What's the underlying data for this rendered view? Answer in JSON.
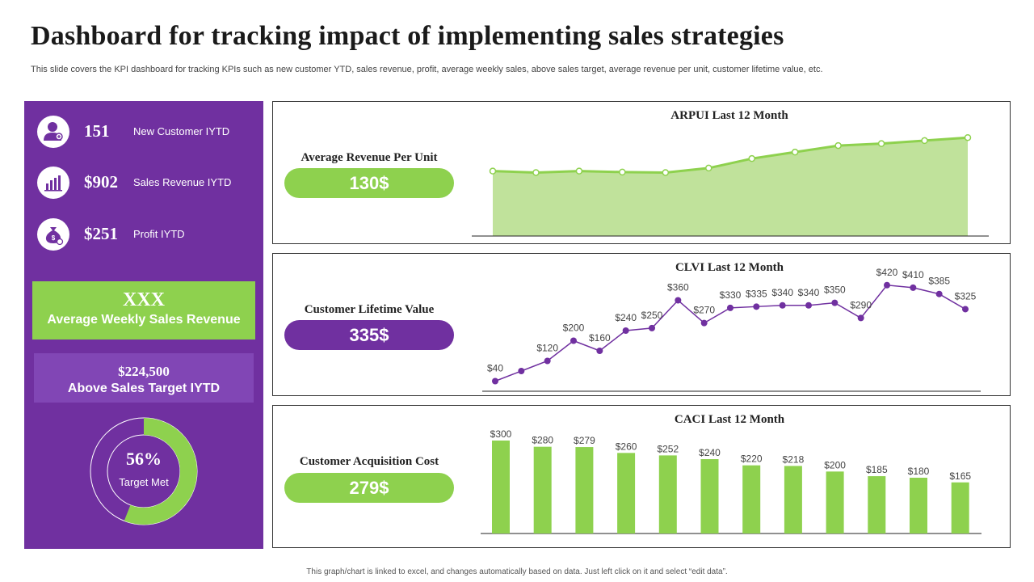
{
  "header": {
    "title": "Dashboard for tracking impact of implementing sales strategies",
    "subtitle": "This slide covers the KPI dashboard for tracking KPIs such as new customer YTD, sales revenue, profit, average weekly sales, above sales target, average revenue per unit, customer lifetime value, etc."
  },
  "left_panel": {
    "kpis": [
      {
        "icon": "user-plus-icon",
        "value": "151",
        "label": "New Customer IYTD"
      },
      {
        "icon": "bar-chart-icon",
        "value": "$902",
        "label": "Sales Revenue  IYTD"
      },
      {
        "icon": "money-bag-icon",
        "value": "$251",
        "label": "Profit IYTD"
      }
    ],
    "weekly": {
      "value": "XXX",
      "label": "Average Weekly Sales Revenue"
    },
    "target": {
      "value": "$224,500",
      "label": "Above Sales Target IYTD"
    },
    "target_met": {
      "value": "56%",
      "label": "Target Met",
      "fraction": 0.56
    }
  },
  "panels": {
    "arpu": {
      "label": "Average Revenue Per Unit",
      "value": "130$"
    },
    "clv": {
      "label": "Customer Lifetime Value",
      "value": "335$"
    },
    "cac": {
      "label": "Customer Acquisition Cost",
      "value": "279$"
    }
  },
  "colors": {
    "purple": "#7030a0",
    "green": "#8ed14e",
    "light_green": "#c0e29b",
    "donut_track": "#7030a0"
  },
  "chart_data": [
    {
      "type": "area",
      "title": "ARPUI Last 12 Month",
      "values": [
        130,
        127,
        130,
        128,
        127,
        136,
        155,
        168,
        181,
        185,
        191,
        197
      ],
      "ylim": [
        0,
        220
      ],
      "grid": false
    },
    {
      "type": "line",
      "title": "CLVI Last 12 Month",
      "values": [
        40,
        80,
        120,
        200,
        160,
        240,
        250,
        360,
        270,
        330,
        335,
        340,
        340,
        350,
        290,
        420,
        410,
        385,
        325
      ],
      "labels": [
        "$40",
        "",
        "$120",
        "$200",
        "$160",
        "$240",
        "$250",
        "$360",
        "$270",
        "$330",
        "$335",
        "$340",
        "$340",
        "$350",
        "$290",
        "$420",
        "$410",
        "$385",
        "$325"
      ],
      "ylim": [
        0,
        480
      ],
      "grid": false
    },
    {
      "type": "bar",
      "title": "CACI Last 12 Month",
      "values": [
        300,
        280,
        279,
        260,
        252,
        240,
        220,
        218,
        200,
        185,
        180,
        165
      ],
      "labels": [
        "$300",
        "$280",
        "$279",
        "$260",
        "$252",
        "$240",
        "$220",
        "$218",
        "$200",
        "$185",
        "$180",
        "$165"
      ],
      "ylim": [
        0,
        300
      ],
      "grid": false
    }
  ],
  "footer": "This graph/chart is linked to excel, and changes automatically based on data. Just left click on it and select “edit data”."
}
